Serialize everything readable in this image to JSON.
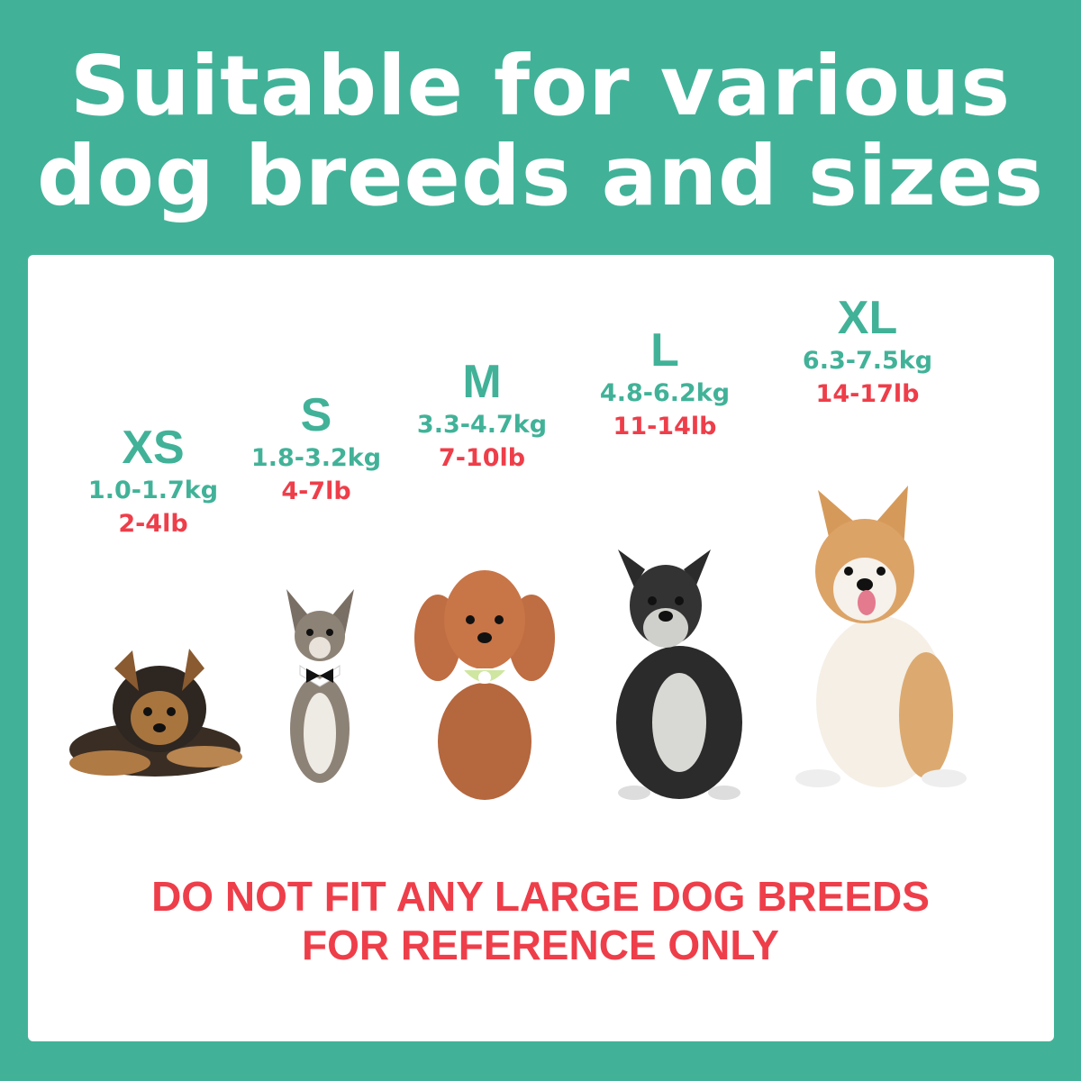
{
  "title": {
    "line1": "Suitable for various",
    "line2": "dog breeds and sizes"
  },
  "sizes": [
    {
      "size": "XS",
      "kg": "1.0-1.7kg",
      "lb": "2-4lb"
    },
    {
      "size": "S",
      "kg": "1.8-3.2kg",
      "lb": "4-7lb"
    },
    {
      "size": "M",
      "kg": "3.3-4.7kg",
      "lb": "7-10lb"
    },
    {
      "size": "L",
      "kg": "4.8-6.2kg",
      "lb": "11-14lb"
    },
    {
      "size": "XL",
      "kg": "6.3-7.5kg",
      "lb": "14-17lb"
    }
  ],
  "warning": {
    "line1": "DO NOT FIT ANY LARGE DOG BREEDS",
    "line2": "FOR REFERENCE ONLY"
  },
  "colors": {
    "background": "#41B298",
    "accent": "#41B298",
    "alert": "#EE3E4A",
    "card": "#FFFFFF"
  }
}
